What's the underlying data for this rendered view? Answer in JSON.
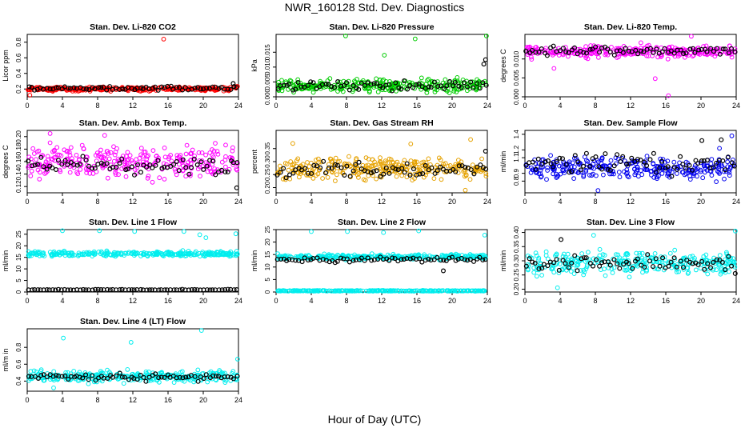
{
  "title": "NWR_160128 Std. Dev. Diagnostics",
  "xlabel": "Hour of Day (UTC)",
  "colors": {
    "red": "#ff0000",
    "green": "#00cc00",
    "magenta": "#ff00ff",
    "orange": "#e6a200",
    "blue": "#0000ee",
    "cyan": "#00eeee",
    "black": "#000000"
  },
  "chart_data": [
    {
      "type": "scatter",
      "title": "Stan. Dev. Li-820 CO2",
      "ylabel": "Licor ppm",
      "xlim": [
        0,
        24
      ],
      "ylim": [
        0.1,
        0.9
      ],
      "xticks": [
        "0",
        "4",
        "8",
        "12",
        "16",
        "20",
        "24"
      ],
      "yticks": [
        "0.2",
        "0.4",
        "0.6",
        "0.8"
      ],
      "series": [
        {
          "color": "red",
          "band": [
            0.16,
            0.24
          ],
          "outliers": [
            [
              15.5,
              0.84
            ],
            [
              0.3,
              0.12
            ]
          ]
        },
        {
          "color": "black",
          "band": [
            0.17,
            0.25
          ],
          "outliers": [
            [
              23.4,
              0.27
            ]
          ]
        }
      ]
    },
    {
      "type": "scatter",
      "title": "Stan. Dev. Li-820 Pressure",
      "ylabel": "kPa",
      "xlim": [
        0,
        24
      ],
      "ylim": [
        0.0,
        0.021
      ],
      "xticks": [
        "0",
        "4",
        "8",
        "12",
        "16",
        "20",
        "24"
      ],
      "yticks": [
        "0.000",
        "0.005",
        "0.010",
        "0.015"
      ],
      "series": [
        {
          "color": "green",
          "band": [
            0.0005,
            0.007
          ],
          "outliers": [
            [
              7.9,
              0.0205
            ],
            [
              15.8,
              0.0195
            ],
            [
              23.9,
              0.0205
            ],
            [
              12.3,
              0.014
            ]
          ]
        },
        {
          "color": "black",
          "band": [
            0.0015,
            0.006
          ],
          "outliers": [
            [
              23.8,
              0.0125
            ],
            [
              23.6,
              0.011
            ]
          ]
        }
      ]
    },
    {
      "type": "scatter",
      "title": "Stan. Dev. Li-820 Temp.",
      "ylabel": "degrees C",
      "xlim": [
        0,
        24
      ],
      "ylim": [
        0.0,
        0.0165
      ],
      "xticks": [
        "0",
        "4",
        "8",
        "12",
        "16",
        "20",
        "24"
      ],
      "yticks": [
        "0.000",
        "0.005",
        "0.010"
      ],
      "series": [
        {
          "color": "magenta",
          "band": [
            0.0095,
            0.0145
          ],
          "outliers": [
            [
              16.3,
              0.0003
            ],
            [
              18.9,
              0.016
            ],
            [
              14.8,
              0.0048
            ],
            [
              3.3,
              0.0075
            ]
          ]
        },
        {
          "color": "black",
          "band": [
            0.0105,
            0.0138
          ],
          "outliers": []
        }
      ]
    },
    {
      "type": "scatter",
      "title": "Stan. Dev. Amb. Box Temp.",
      "ylabel": "degrees C",
      "xlim": [
        0,
        24
      ],
      "ylim": [
        0.11,
        0.21
      ],
      "xticks": [
        "0",
        "4",
        "8",
        "12",
        "16",
        "20",
        "24"
      ],
      "yticks": [
        "0.12",
        "0.14",
        "0.16",
        "0.18",
        "0.20"
      ],
      "series": [
        {
          "color": "magenta",
          "band": [
            0.125,
            0.195
          ],
          "outliers": [
            [
              2.6,
              0.205
            ],
            [
              8.8,
              0.202
            ]
          ]
        },
        {
          "color": "black",
          "band": [
            0.13,
            0.175
          ],
          "outliers": [
            [
              23.8,
              0.118
            ]
          ]
        }
      ]
    },
    {
      "type": "scatter",
      "title": "Stan. Dev. Gas Stream RH",
      "ylabel": "percent",
      "xlim": [
        0,
        24
      ],
      "ylim": [
        0.18,
        0.42
      ],
      "xticks": [
        "0",
        "4",
        "8",
        "12",
        "16",
        "20",
        "24"
      ],
      "yticks": [
        "0.20",
        "0.25",
        "0.30",
        "0.35"
      ],
      "series": [
        {
          "color": "orange",
          "band": [
            0.215,
            0.33
          ],
          "outliers": [
            [
              22.1,
              0.385
            ],
            [
              1.9,
              0.37
            ],
            [
              15.3,
              0.368
            ],
            [
              21.5,
              0.19
            ]
          ]
        },
        {
          "color": "black",
          "band": [
            0.23,
            0.31
          ],
          "outliers": [
            [
              23.8,
              0.34
            ]
          ]
        }
      ]
    },
    {
      "type": "scatter",
      "title": "Stan. Dev. Sample Flow",
      "ylabel": "ml/min",
      "xlim": [
        0,
        24
      ],
      "ylim": [
        0.65,
        1.45
      ],
      "xticks": [
        "0",
        "4",
        "8",
        "12",
        "16",
        "20",
        "24"
      ],
      "yticks": [
        "0.8",
        "0.9",
        "1.1",
        "1.2",
        "1.4"
      ],
      "series": [
        {
          "color": "blue",
          "band": [
            0.78,
            1.15
          ],
          "outliers": [
            [
              23.5,
              1.38
            ],
            [
              8.3,
              0.68
            ],
            [
              22.1,
              1.22
            ]
          ]
        },
        {
          "color": "black",
          "band": [
            0.85,
            1.2
          ],
          "outliers": [
            [
              20.1,
              1.32
            ],
            [
              22.3,
              1.33
            ]
          ]
        }
      ]
    },
    {
      "type": "scatter",
      "title": "Stan. Dev. Line 1 Flow",
      "ylabel": "ml/min",
      "xlim": [
        0,
        24
      ],
      "ylim": [
        0,
        27
      ],
      "xticks": [
        "0",
        "4",
        "8",
        "12",
        "16",
        "20",
        "24"
      ],
      "yticks": [
        "0",
        "5",
        "10",
        "15",
        "20",
        "25"
      ],
      "series": [
        {
          "color": "cyan",
          "band": [
            15,
            18
          ],
          "outliers": [
            [
              4.0,
              26.5
            ],
            [
              8.2,
              26.5
            ],
            [
              12.2,
              26.2
            ],
            [
              23.7,
              25.2
            ],
            [
              19.6,
              24.8
            ],
            [
              20.3,
              23.5
            ],
            [
              17.8,
              26.2
            ]
          ]
        },
        {
          "color": "black",
          "band": [
            0.8,
            1.2
          ],
          "outliers": []
        }
      ]
    },
    {
      "type": "scatter",
      "title": "Stan. Dev. Line 2 Flow",
      "ylabel": "ml/min",
      "xlim": [
        0,
        24
      ],
      "ylim": [
        0,
        25
      ],
      "xticks": [
        "0",
        "4",
        "8",
        "12",
        "16",
        "20",
        "24"
      ],
      "yticks": [
        "0",
        "5",
        "10",
        "15",
        "20",
        "25"
      ],
      "series": [
        {
          "color": "cyan",
          "band": [
            12.5,
            15.5
          ],
          "outliers": [
            [
              4.0,
              24.2
            ],
            [
              8.1,
              24.2
            ],
            [
              12.2,
              23.8
            ],
            [
              16.2,
              24.5
            ],
            [
              23.7,
              22.8
            ]
          ]
        },
        {
          "color": "black",
          "band": [
            11.5,
            14.5
          ],
          "outliers": [
            [
              19.0,
              8.5
            ]
          ]
        },
        {
          "color": "cyan",
          "band": [
            0.2,
            0.7
          ],
          "outliers": []
        }
      ]
    },
    {
      "type": "scatter",
      "title": "Stan. Dev. Line 3 Flow",
      "ylabel": "ml/min",
      "xlim": [
        0,
        24
      ],
      "ylim": [
        0.19,
        0.41
      ],
      "xticks": [
        "0",
        "4",
        "8",
        "12",
        "16",
        "20",
        "24"
      ],
      "yticks": [
        "0.20",
        "0.25",
        "0.30",
        "0.35",
        "0.40"
      ],
      "series": [
        {
          "color": "cyan",
          "band": [
            0.235,
            0.345
          ],
          "outliers": [
            [
              3.7,
              0.205
            ],
            [
              23.9,
              0.405
            ],
            [
              7.8,
              0.39
            ]
          ]
        },
        {
          "color": "black",
          "band": [
            0.25,
            0.33
          ],
          "outliers": [
            [
              4.1,
              0.375
            ]
          ]
        }
      ]
    },
    {
      "type": "scatter",
      "title": "Stan. Dev. Line 4 (LT) Flow",
      "ylabel": "ml/m in",
      "xlim": [
        0,
        24
      ],
      "ylim": [
        0.28,
        1.02
      ],
      "xticks": [
        "0",
        "4",
        "8",
        "12",
        "16",
        "20",
        "24"
      ],
      "yticks": [
        "0.4",
        "0.6",
        "0.8"
      ],
      "series": [
        {
          "color": "cyan",
          "band": [
            0.36,
            0.55
          ],
          "outliers": [
            [
              19.8,
              1.0
            ],
            [
              4.1,
              0.91
            ],
            [
              11.8,
              0.86
            ],
            [
              23.9,
              0.66
            ],
            [
              3.0,
              0.32
            ]
          ]
        },
        {
          "color": "black",
          "band": [
            0.39,
            0.5
          ],
          "outliers": []
        }
      ]
    }
  ]
}
